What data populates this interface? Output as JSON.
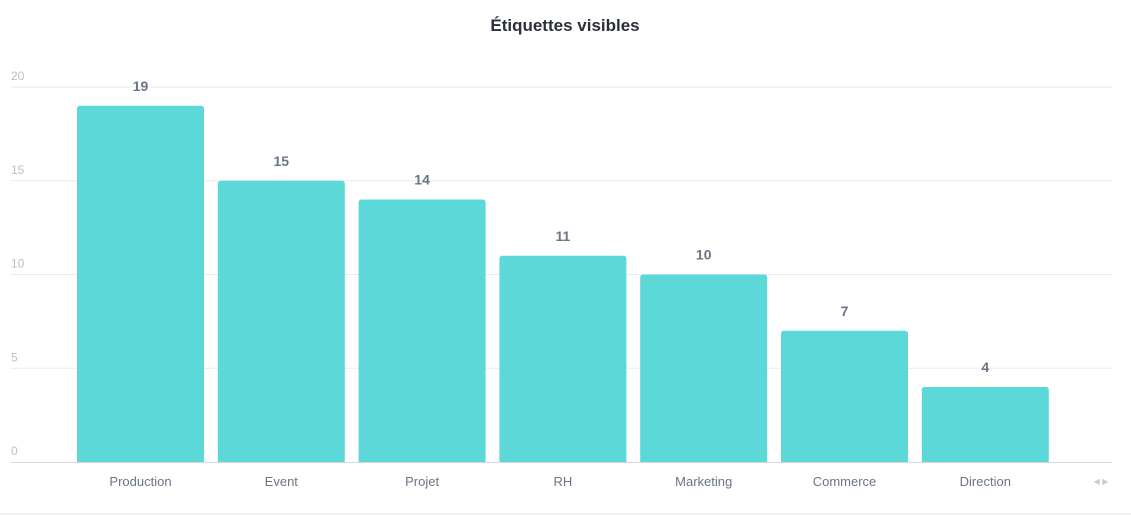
{
  "chart_data": {
    "type": "bar",
    "title": "Étiquettes visibles",
    "xlabel": "",
    "ylabel": "",
    "categories": [
      "Production",
      "Event",
      "Projet",
      "RH",
      "Marketing",
      "Commerce",
      "Direction"
    ],
    "values": [
      19,
      15,
      14,
      11,
      10,
      7,
      4
    ],
    "data_labels": [
      "19",
      "15",
      "14",
      "11",
      "10",
      "7",
      "4"
    ],
    "ylim": [
      0,
      20
    ],
    "yticks": [
      0,
      5,
      10,
      15,
      20
    ],
    "grid": true,
    "legend": "none",
    "colors": {
      "bar": "#5dd8d8",
      "grid": "#e8ebef",
      "axis": "#d6dae0"
    }
  },
  "ui": {
    "scroll_arrows": "◀ ▶"
  }
}
